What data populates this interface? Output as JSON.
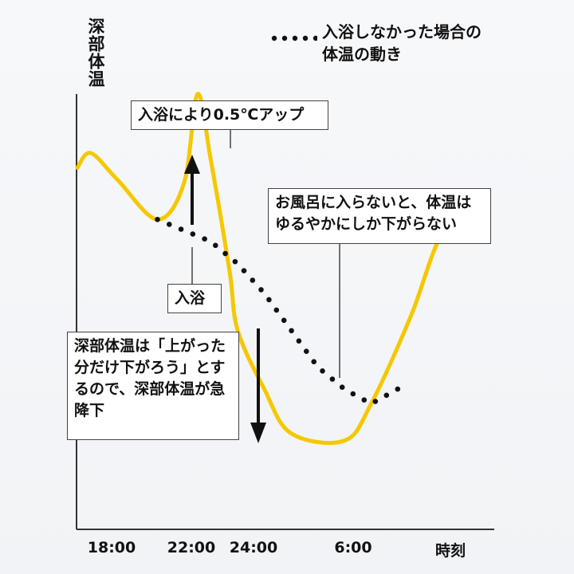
{
  "chart_data": {
    "type": "line",
    "ylabel": "深部体温",
    "xlabel": "時刻",
    "x_ticks": [
      "18:00",
      "22:00",
      "24:00",
      "6:00"
    ],
    "series": [
      {
        "name": "",
        "style": "solid",
        "color": "#f5c800",
        "x": [
          0,
          0.5,
          1.5,
          3,
          4,
          4.5,
          5,
          5.7,
          6,
          7,
          8,
          10,
          11,
          12.5,
          13.5,
          14.5
        ],
        "y": [
          50,
          60,
          42,
          15,
          40,
          100,
          55,
          -20,
          -60,
          -100,
          -130,
          -135,
          -110,
          -50,
          0,
          25
        ]
      },
      {
        "name": "入浴しなかった場合の体温の動き",
        "style": "dotted",
        "color": "#111111",
        "x": [
          3,
          5,
          6,
          7,
          8,
          9,
          10,
          11,
          12
        ],
        "y": [
          15,
          0,
          -15,
          -35,
          -60,
          -85,
          -100,
          -110,
          -100
        ]
      }
    ],
    "legend": {
      "label": "入浴しなかった場合の体温の動き",
      "placement": "top-right"
    },
    "annotations": [
      {
        "id": "rise",
        "text": "入浴により0.5℃アップ"
      },
      {
        "id": "bath",
        "text": "入浴"
      },
      {
        "id": "no_bath",
        "text": "お風呂に入らないと、体温はゆるやかにしか下がらない"
      },
      {
        "id": "drop",
        "text": "深部体温は「上がった分だけ下がろう」とするので、深部体温が急降下"
      }
    ],
    "colors": {
      "curve": "#f5c800",
      "axis": "#333333",
      "dotted": "#111111"
    }
  }
}
